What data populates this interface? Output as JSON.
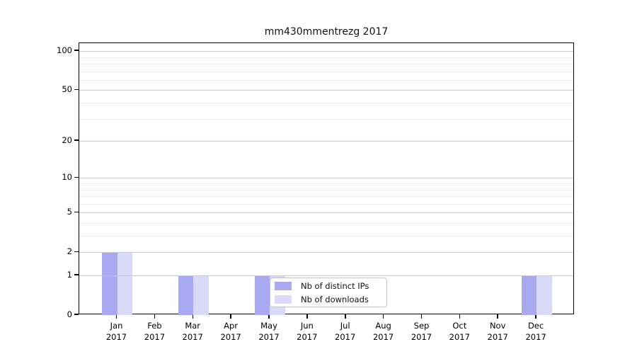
{
  "title": "mm430mmentrezg 2017",
  "chart_data": {
    "type": "bar",
    "title": "mm430mmentrezg 2017",
    "categories": [
      "Jan 2017",
      "Feb 2017",
      "Mar 2017",
      "Apr 2017",
      "May 2017",
      "Jun 2017",
      "Jul 2017",
      "Aug 2017",
      "Sep 2017",
      "Oct 2017",
      "Nov 2017",
      "Dec 2017"
    ],
    "category_line1": [
      "Jan",
      "Feb",
      "Mar",
      "Apr",
      "May",
      "Jun",
      "Jul",
      "Aug",
      "Sep",
      "Oct",
      "Nov",
      "Dec"
    ],
    "category_line2": "2017",
    "series": [
      {
        "name": "Nb of distinct IPs",
        "color": "#a9a9f2",
        "values": [
          2,
          0,
          1,
          0,
          1,
          0,
          0,
          0,
          0,
          0,
          0,
          1
        ]
      },
      {
        "name": "Nb of downloads",
        "color": "#d9d9f8",
        "values": [
          2,
          0,
          1,
          0,
          1,
          0,
          0,
          0,
          0,
          0,
          0,
          1
        ]
      }
    ],
    "y_axis": {
      "scale": "log1p",
      "tick_values": [
        0,
        1,
        2,
        5,
        10,
        20,
        50,
        100
      ],
      "tick_labels": [
        "0",
        "1",
        "2",
        "5",
        "10",
        "20",
        "50",
        "100"
      ],
      "minor_gridline_values": [
        3,
        4,
        6,
        7,
        8,
        9,
        30,
        40,
        60,
        70,
        80,
        90
      ],
      "ylim": [
        0,
        117
      ]
    },
    "xlabel": "",
    "ylabel": "",
    "grid": true,
    "legend": {
      "position": "lower-center",
      "entries": [
        "Nb of distinct IPs",
        "Nb of downloads"
      ]
    }
  },
  "colors": {
    "bar_distinct_ips": "#a9a9f2",
    "bar_downloads": "#d9d9f8",
    "gridline_major": "#c9c9c9",
    "gridline_minor": "#ececec",
    "axis": "#000000",
    "legend_border": "#c4c4c4",
    "background": "#ffffff",
    "text": "#000000"
  }
}
